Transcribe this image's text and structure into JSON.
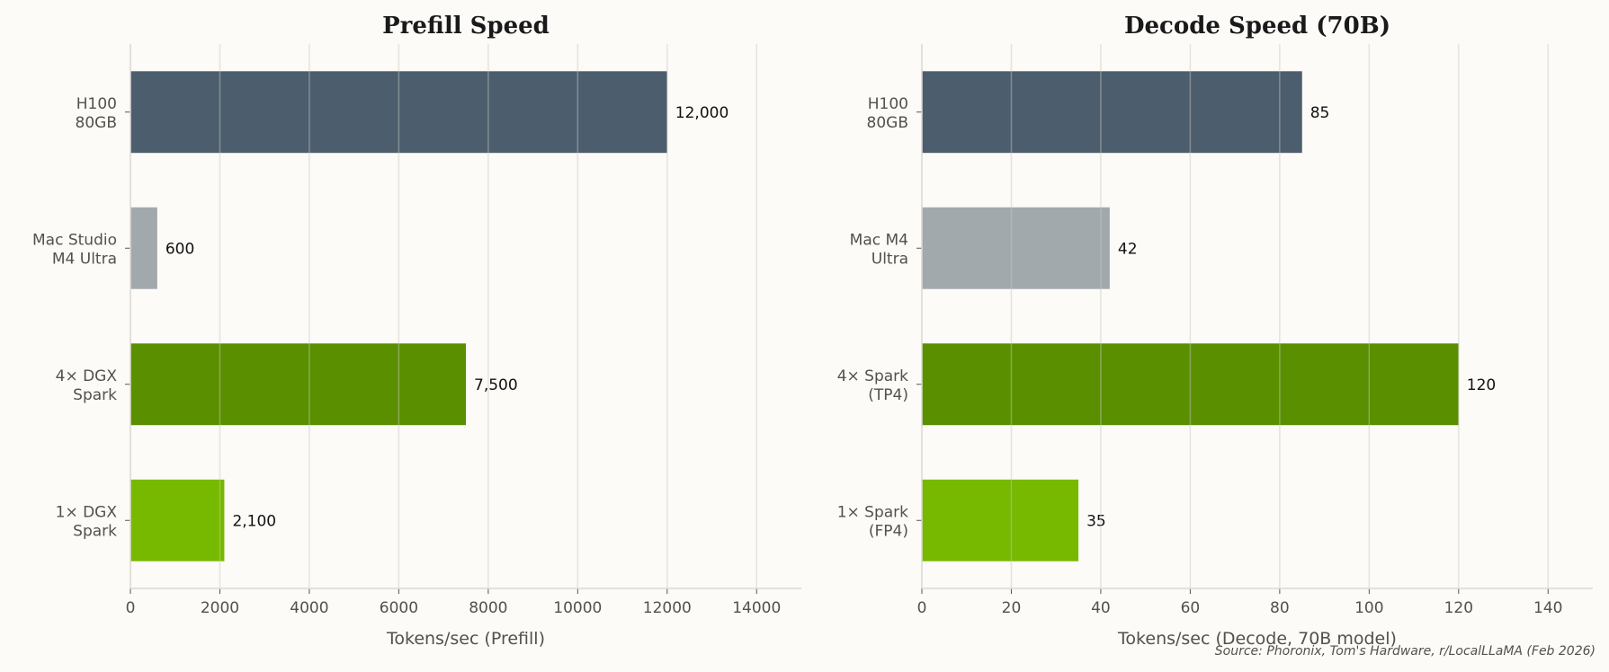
{
  "colors": {
    "background": "#fcfbf8",
    "h100": "#4c5d6d",
    "mac": "#a2a9ad",
    "spark4": "#5a8f00",
    "spark1": "#76b900",
    "grid": "#ecebe6"
  },
  "source": "Source: Phoronix, Tom's Hardware, r/LocalLLaMA (Feb 2026)",
  "chart_data": [
    {
      "type": "bar",
      "orientation": "horizontal",
      "title": "Prefill Speed",
      "xlabel": "Tokens/sec (Prefill)",
      "ylabel": "",
      "categories": [
        "H100\n80GB",
        "Mac Studio\nM4 Ultra",
        "4× DGX\nSpark",
        "1× DGX\nSpark"
      ],
      "values": [
        12000,
        600,
        7500,
        2100
      ],
      "data_labels": [
        "12,000",
        "600",
        "7,500",
        "2,100"
      ],
      "bar_colors": [
        "#4c5d6d",
        "#a2a9ad",
        "#5a8f00",
        "#76b900"
      ],
      "xlim": [
        0,
        15000
      ],
      "xticks": [
        0,
        2000,
        4000,
        6000,
        8000,
        10000,
        12000,
        14000
      ],
      "grid": "vertical"
    },
    {
      "type": "bar",
      "orientation": "horizontal",
      "title": "Decode Speed (70B)",
      "xlabel": "Tokens/sec (Decode, 70B model)",
      "ylabel": "",
      "categories": [
        "H100\n80GB",
        "Mac M4\nUltra",
        "4× Spark\n(TP4)",
        "1× Spark\n(FP4)"
      ],
      "values": [
        85,
        42,
        120,
        35
      ],
      "data_labels": [
        "85",
        "42",
        "120",
        "35"
      ],
      "bar_colors": [
        "#4c5d6d",
        "#a2a9ad",
        "#5a8f00",
        "#76b900"
      ],
      "xlim": [
        0,
        150
      ],
      "xticks": [
        0,
        20,
        40,
        60,
        80,
        100,
        120,
        140
      ],
      "grid": "vertical"
    }
  ]
}
